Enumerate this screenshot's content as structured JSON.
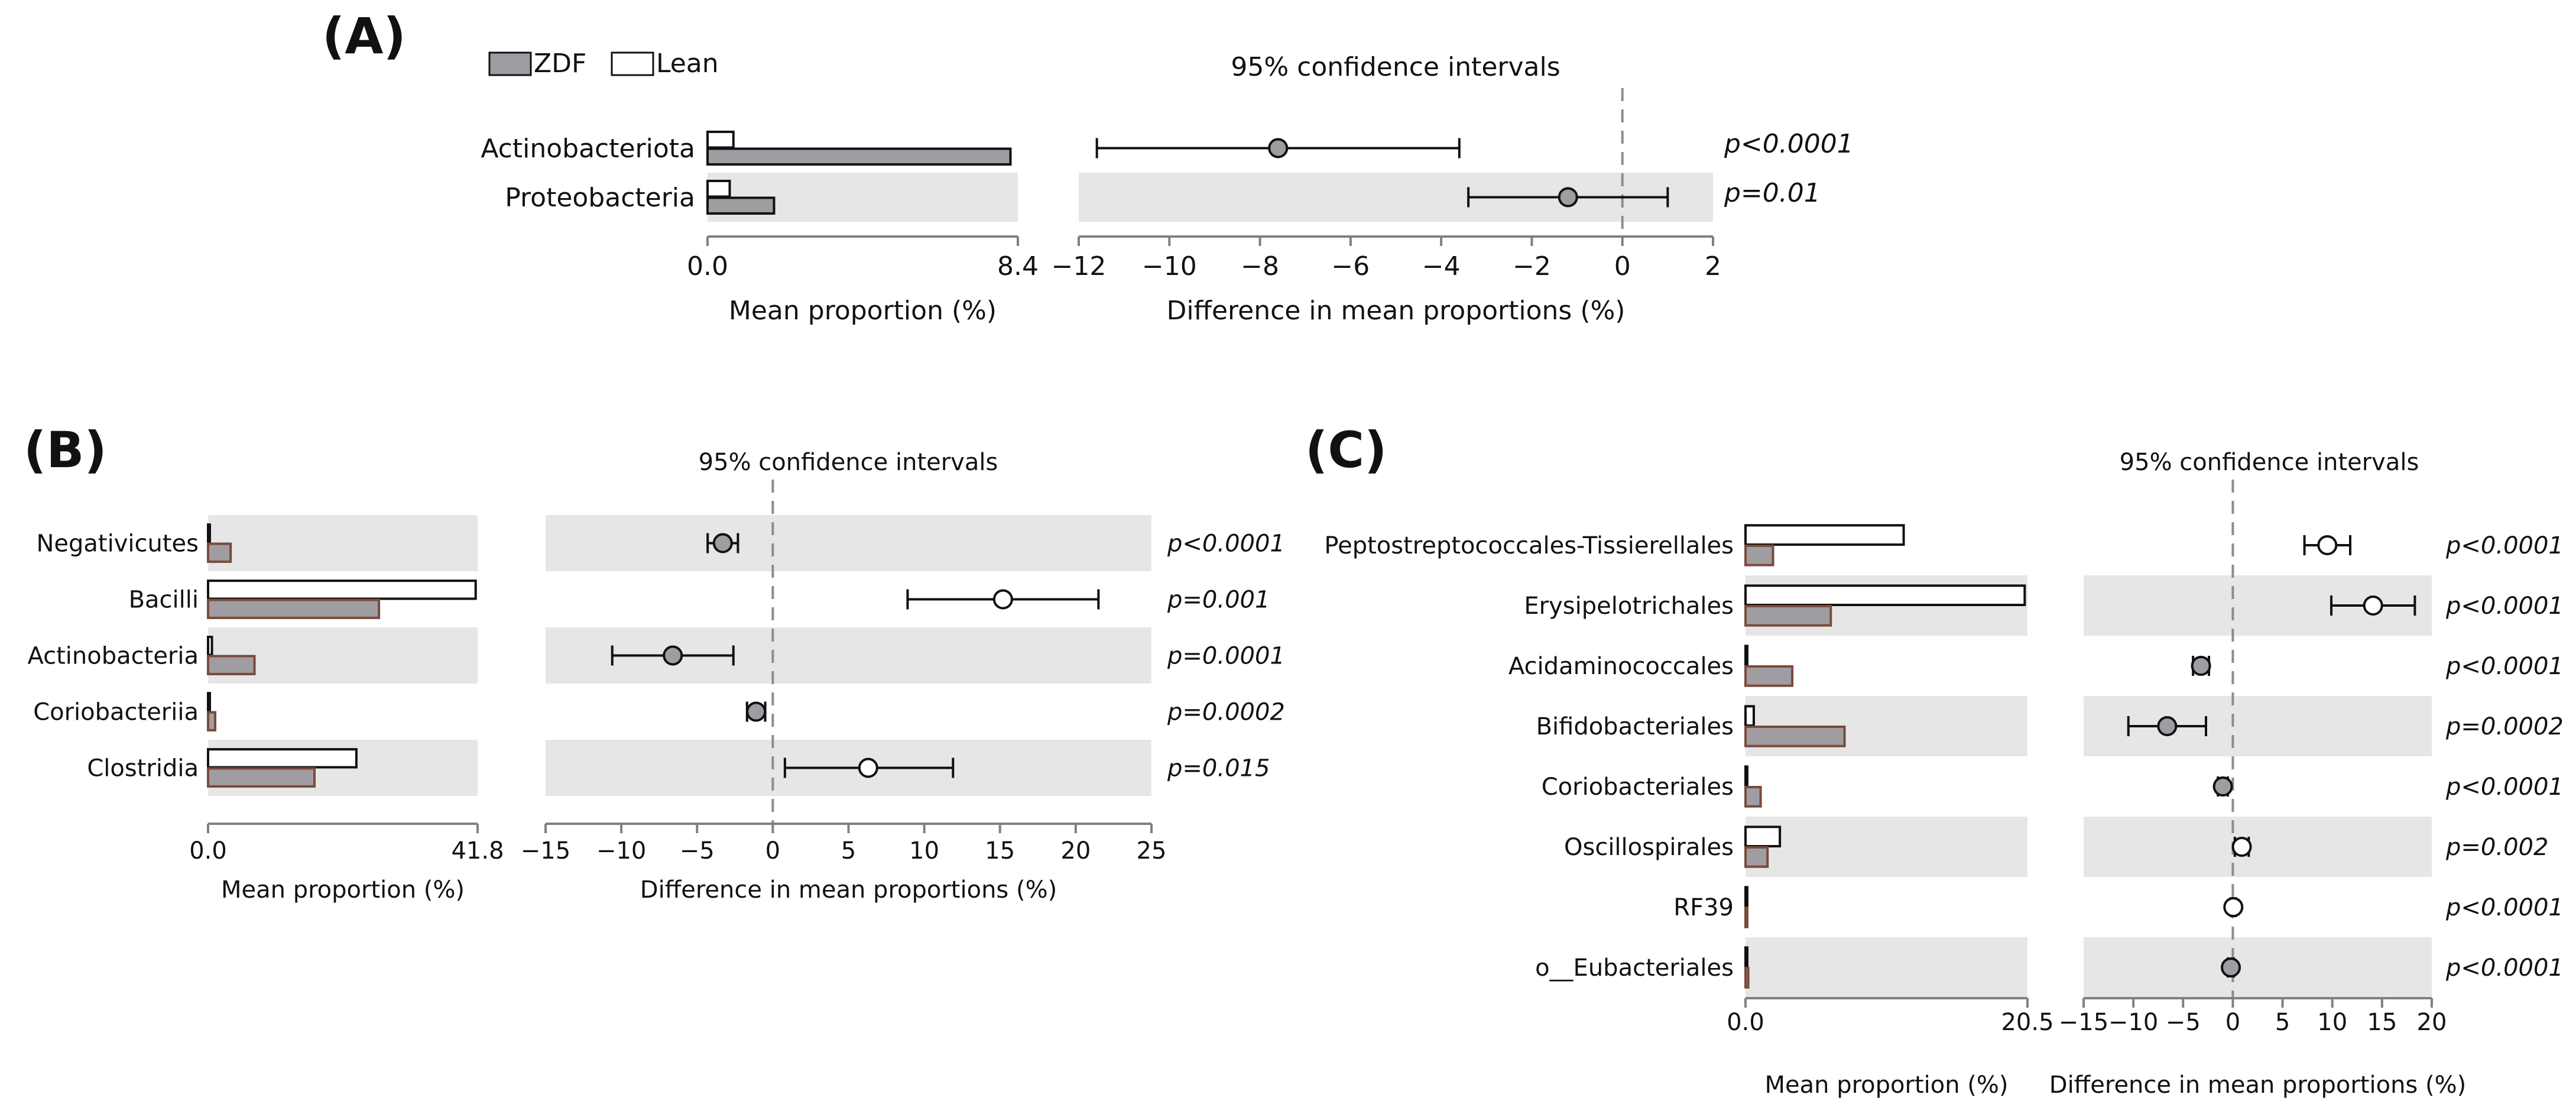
{
  "legend": {
    "items": [
      {
        "label": "ZDF",
        "color": "#a09da2"
      },
      {
        "label": "Lean",
        "color": "#ffffff"
      }
    ]
  },
  "colors": {
    "zdf_fill": "#a09da2",
    "lean_fill": "#ffffff",
    "band_fill": "#e6e6e6",
    "axis": "#808080",
    "zero_line": "#8c8c8c",
    "bar_edge_c": "#7a4a3a"
  },
  "chart_data": [
    {
      "panel": "(A)",
      "type": "bar",
      "ci_title": "95% confidence intervals",
      "bar_xlabel": "Mean proportion (%)",
      "bar_xlim": [
        0,
        8.4
      ],
      "bar_ticks": [
        "0.0",
        "8.4"
      ],
      "diff_xlabel": "Difference in mean proportions (%)",
      "diff_xlim": [
        -12,
        2
      ],
      "diff_ticks": [
        "−12",
        "−10",
        "−8",
        "−6",
        "−4",
        "−2",
        "0",
        "2"
      ],
      "categories": [
        {
          "name": "Actinobacteriota",
          "zdf": 8.2,
          "lean": 0.7,
          "diff": -7.6,
          "ci": [
            -11.6,
            -3.6
          ],
          "pvalue": "p<0.0001",
          "point": "ZDF",
          "band": false
        },
        {
          "name": "Proteobacteria",
          "zdf": 1.8,
          "lean": 0.6,
          "diff": -1.2,
          "ci": [
            -3.4,
            1.0
          ],
          "pvalue": "p=0.01",
          "point": "ZDF",
          "band": true
        }
      ]
    },
    {
      "panel": "(B)",
      "type": "bar",
      "ci_title": "95% confidence intervals",
      "bar_xlabel": "Mean proportion (%)",
      "bar_xlim": [
        0,
        41.8
      ],
      "bar_ticks": [
        "0.0",
        "41.8"
      ],
      "diff_xlabel": "Difference in mean proportions (%)",
      "diff_xlim": [
        -15,
        25
      ],
      "diff_ticks": [
        "−15",
        "−10",
        "−5",
        "0",
        "5",
        "10",
        "15",
        "20",
        "25"
      ],
      "categories": [
        {
          "name": "Negativicutes",
          "zdf": 3.5,
          "lean": 0.1,
          "diff": -3.3,
          "ci": [
            -4.3,
            -2.3
          ],
          "pvalue": "p<0.0001",
          "point": "ZDF",
          "band": true
        },
        {
          "name": "Bacilli",
          "zdf": 26.5,
          "lean": 41.5,
          "diff": 15.2,
          "ci": [
            8.9,
            21.5
          ],
          "pvalue": "p=0.001",
          "point": "Lean",
          "band": false
        },
        {
          "name": "Actinobacteria",
          "zdf": 7.2,
          "lean": 0.6,
          "diff": -6.6,
          "ci": [
            -10.6,
            -2.6
          ],
          "pvalue": "p=0.0001",
          "point": "ZDF",
          "band": true
        },
        {
          "name": "Coriobacteriia",
          "zdf": 1.1,
          "lean": 0.1,
          "diff": -1.1,
          "ci": [
            -1.7,
            -0.5
          ],
          "pvalue": "p=0.0002",
          "point": "ZDF",
          "band": false
        },
        {
          "name": "Clostridia",
          "zdf": 16.5,
          "lean": 23.0,
          "diff": 6.3,
          "ci": [
            0.8,
            11.9
          ],
          "pvalue": "p=0.015",
          "point": "Lean",
          "band": true
        }
      ]
    },
    {
      "panel": "(C)",
      "type": "bar",
      "ci_title": "95% confidence intervals",
      "bar_xlabel": "Mean proportion (%)",
      "bar_xlim": [
        0,
        20.5
      ],
      "bar_ticks": [
        "0.0",
        "20.5"
      ],
      "diff_xlabel": "Difference in mean proportions (%)",
      "diff_xlim": [
        -15,
        20
      ],
      "diff_ticks": [
        "−15",
        "−10",
        "−5",
        "0",
        "5",
        "10",
        "15",
        "20"
      ],
      "categories": [
        {
          "name": "Peptostreptococcales-Tissierellales",
          "zdf": 2.0,
          "lean": 11.5,
          "diff": 9.5,
          "ci": [
            7.2,
            11.8
          ],
          "pvalue": "p<0.0001",
          "point": "Lean",
          "band": false
        },
        {
          "name": "Erysipelotrichales",
          "zdf": 6.2,
          "lean": 20.3,
          "diff": 14.1,
          "ci": [
            9.9,
            18.3
          ],
          "pvalue": "p<0.0001",
          "point": "Lean",
          "band": true
        },
        {
          "name": "Acidaminococcales",
          "zdf": 3.4,
          "lean": 0.1,
          "diff": -3.2,
          "ci": [
            -4.0,
            -2.4
          ],
          "pvalue": "p<0.0001",
          "point": "ZDF",
          "band": false
        },
        {
          "name": "Bifidobacteriales",
          "zdf": 7.2,
          "lean": 0.6,
          "diff": -6.6,
          "ci": [
            -10.5,
            -2.7
          ],
          "pvalue": "p=0.0002",
          "point": "ZDF",
          "band": true
        },
        {
          "name": "Coriobacteriales",
          "zdf": 1.1,
          "lean": 0.1,
          "diff": -1.0,
          "ci": [
            -1.5,
            -0.5
          ],
          "pvalue": "p<0.0001",
          "point": "ZDF",
          "band": false
        },
        {
          "name": "Oscillospirales",
          "zdf": 1.6,
          "lean": 2.5,
          "diff": 0.9,
          "ci": [
            0.2,
            1.6
          ],
          "pvalue": "p=0.002",
          "point": "Lean",
          "band": true
        },
        {
          "name": "RF39",
          "zdf": 0.0,
          "lean": 0.05,
          "diff": 0.05,
          "ci": [
            -0.2,
            0.3
          ],
          "pvalue": "p<0.0001",
          "point": "Lean",
          "band": false
        },
        {
          "name": "o__Eubacteriales",
          "zdf": 0.2,
          "lean": 0.02,
          "diff": -0.2,
          "ci": [
            -0.5,
            0.1
          ],
          "pvalue": "p<0.0001",
          "point": "ZDF",
          "band": true
        }
      ]
    }
  ]
}
